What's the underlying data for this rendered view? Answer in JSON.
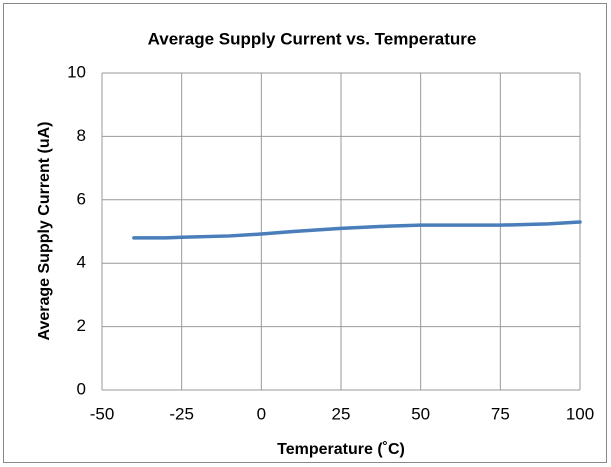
{
  "chart_data": {
    "type": "line",
    "title": "Average Supply Current vs. Temperature",
    "x_label": "Temperature (˚C)",
    "y_label": "Average Supply Current (uA)",
    "x": [
      -40,
      -30,
      -25,
      -10,
      0,
      10,
      25,
      40,
      50,
      60,
      75,
      90,
      100
    ],
    "series": [
      {
        "name": "Average Supply Current",
        "color": "#4a7ebb",
        "values": [
          4.8,
          4.8,
          4.82,
          4.86,
          4.92,
          5.0,
          5.1,
          5.17,
          5.2,
          5.2,
          5.2,
          5.24,
          5.3
        ]
      }
    ],
    "xlim": [
      -50,
      100
    ],
    "xticks": [
      -50,
      -25,
      0,
      25,
      50,
      75,
      100
    ],
    "ylim": [
      0,
      10
    ],
    "yticks": [
      0,
      2,
      4,
      6,
      8,
      10
    ],
    "grid": true,
    "legend": false
  }
}
